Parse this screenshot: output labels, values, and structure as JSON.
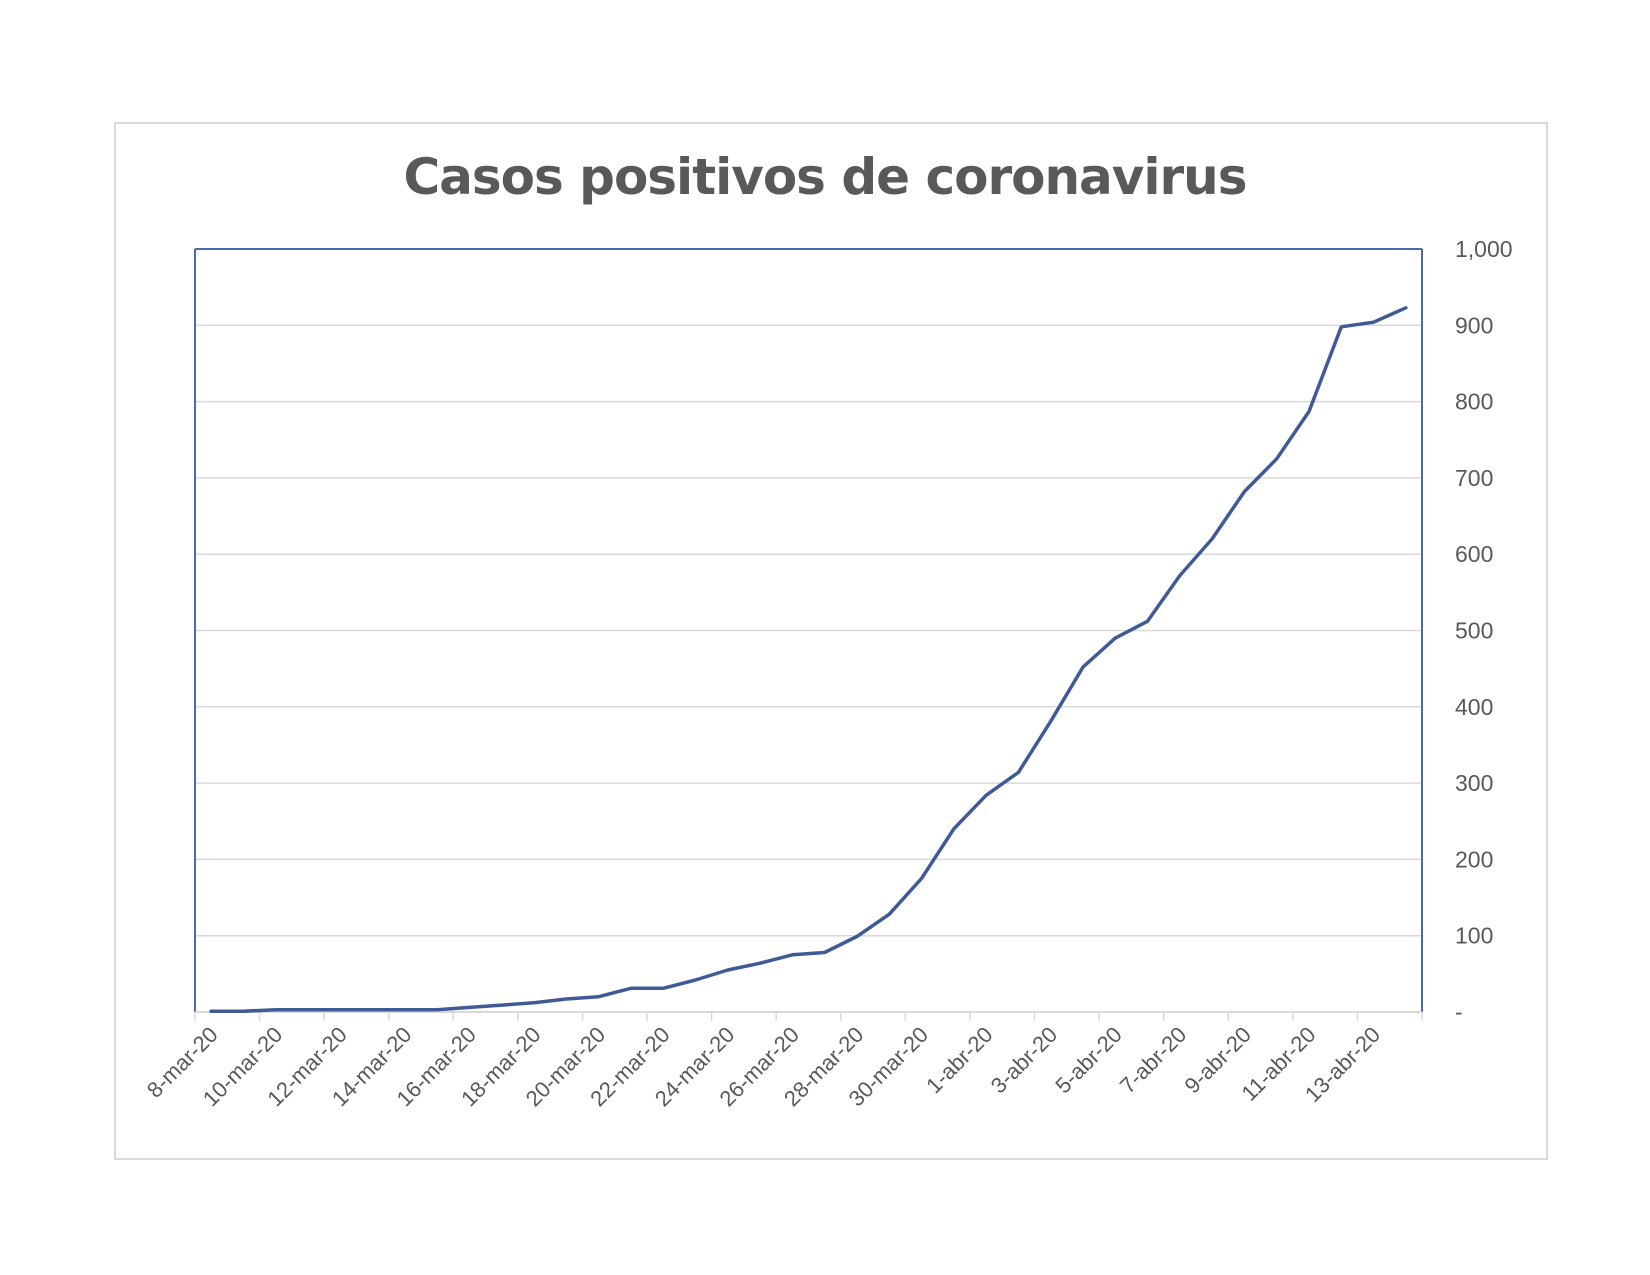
{
  "chart_data": {
    "type": "line",
    "title": "Casos positivos de coronavirus",
    "xlabel": "",
    "ylabel": "",
    "ylim": [
      0,
      1000
    ],
    "y_axis_side": "right",
    "yticks": [
      0,
      100,
      200,
      300,
      400,
      500,
      600,
      700,
      800,
      900,
      1000
    ],
    "ytick_labels": [
      "-",
      "100",
      "200",
      "300",
      "400",
      "500",
      "600",
      "700",
      "800",
      "900",
      "1,000"
    ],
    "grid": true,
    "legend": "none",
    "x_tick_labels": [
      "8-mar-20",
      "10-mar-20",
      "12-mar-20",
      "14-mar-20",
      "16-mar-20",
      "18-mar-20",
      "20-mar-20",
      "22-mar-20",
      "24-mar-20",
      "26-mar-20",
      "28-mar-20",
      "30-mar-20",
      "1-abr-20",
      "3-abr-20",
      "5-abr-20",
      "7-abr-20",
      "9-abr-20",
      "11-abr-20",
      "13-abr-20"
    ],
    "x": [
      "8-mar-20",
      "9-mar-20",
      "10-mar-20",
      "11-mar-20",
      "12-mar-20",
      "13-mar-20",
      "14-mar-20",
      "15-mar-20",
      "16-mar-20",
      "17-mar-20",
      "18-mar-20",
      "19-mar-20",
      "20-mar-20",
      "21-mar-20",
      "22-mar-20",
      "23-mar-20",
      "24-mar-20",
      "25-mar-20",
      "26-mar-20",
      "27-mar-20",
      "28-mar-20",
      "29-mar-20",
      "30-mar-20",
      "31-mar-20",
      "1-abr-20",
      "2-abr-20",
      "3-abr-20",
      "4-abr-20",
      "5-abr-20",
      "6-abr-20",
      "7-abr-20",
      "8-abr-20",
      "9-abr-20",
      "10-abr-20",
      "11-abr-20",
      "12-abr-20",
      "13-abr-20",
      "14-abr-20"
    ],
    "series": [
      {
        "values": [
          1,
          1,
          3,
          3,
          3,
          3,
          3,
          3,
          6,
          9,
          12,
          17,
          20,
          31,
          31,
          42,
          55,
          64,
          75,
          78,
          99,
          128,
          175,
          240,
          284,
          314,
          381,
          452,
          490,
          512,
          572,
          620,
          682,
          725,
          787,
          898,
          904,
          923
        ]
      }
    ],
    "colors": {
      "line": "#3f5a96",
      "plot_border": "#4a6ab0",
      "grid": "#d9d9d9",
      "text": "#595959"
    }
  }
}
